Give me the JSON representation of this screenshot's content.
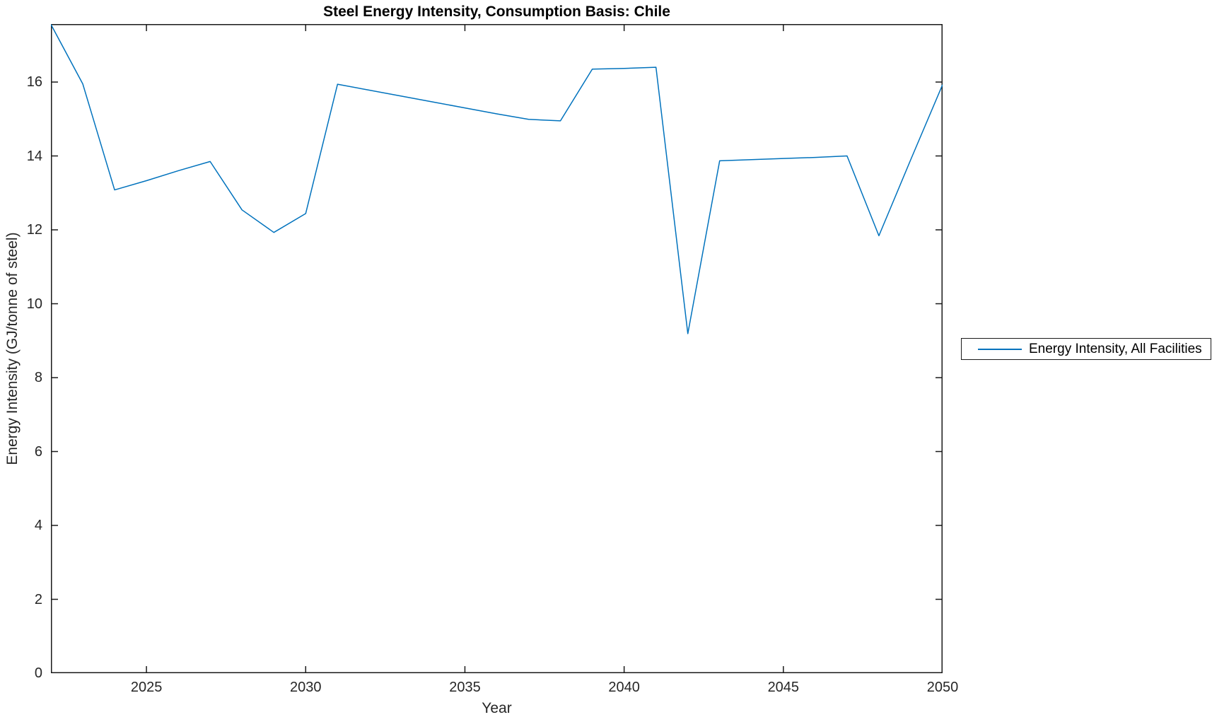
{
  "chart_data": {
    "type": "line",
    "title": "Steel Energy Intensity, Consumption Basis: Chile",
    "xlabel": "Year",
    "ylabel": "Energy Intensity (GJ/tonne of steel)",
    "xlim": [
      2022,
      2050
    ],
    "ylim": [
      0,
      17.57
    ],
    "xticks": [
      2025,
      2030,
      2035,
      2040,
      2045,
      2050
    ],
    "yticks": [
      0,
      2,
      4,
      6,
      8,
      10,
      12,
      14,
      16
    ],
    "grid": false,
    "legend_position": "right-outside-middle",
    "x": [
      2022,
      2023,
      2024,
      2025,
      2026,
      2027,
      2028,
      2029,
      2030,
      2031,
      2032,
      2033,
      2034,
      2035,
      2036,
      2037,
      2038,
      2039,
      2040,
      2041,
      2042,
      2043,
      2044,
      2045,
      2046,
      2047,
      2048,
      2049,
      2050
    ],
    "series": [
      {
        "name": "Energy Intensity, All Facilities",
        "color": "#0072BD",
        "values": [
          17.56,
          15.95,
          13.08,
          13.33,
          13.6,
          13.85,
          12.54,
          11.93,
          12.44,
          15.94,
          15.78,
          15.62,
          15.46,
          15.3,
          15.14,
          14.99,
          14.95,
          16.35,
          16.37,
          16.4,
          9.19,
          13.87,
          13.9,
          13.93,
          13.96,
          14.0,
          11.84,
          13.9,
          15.93
        ]
      }
    ]
  },
  "colors": {
    "line": "#0072BD",
    "axis": "#1a1a1a",
    "tick_text": "#262626",
    "background": "#ffffff"
  }
}
